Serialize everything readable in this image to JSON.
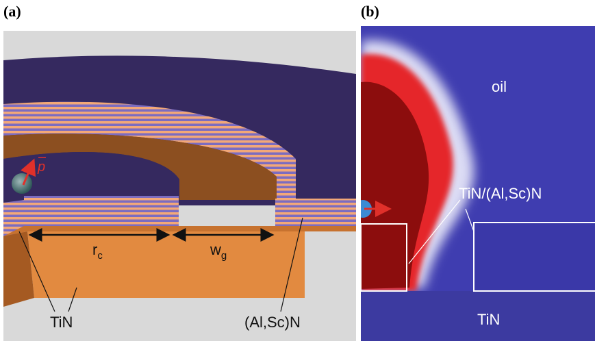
{
  "panels": [
    {
      "label": "(a)",
      "dipole": "p",
      "radius": {
        "symbol": "r",
        "subscript": "c"
      },
      "gap": {
        "symbol": "w",
        "subscript": "g"
      },
      "materials": [
        "TiN",
        "(Al,Sc)N"
      ]
    },
    {
      "label": "(b)",
      "regions": [
        "oil",
        "TiN/(Al,Sc)N",
        "TiN"
      ]
    }
  ]
}
